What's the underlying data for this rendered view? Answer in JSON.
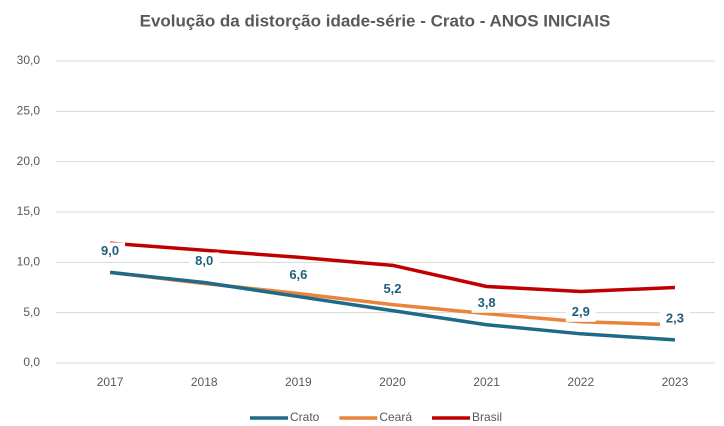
{
  "chart_data": {
    "type": "line",
    "title": "Evolução da distorção idade-série - Crato - ANOS INICIAIS",
    "categories": [
      "2017",
      "2018",
      "2019",
      "2020",
      "2021",
      "2022",
      "2023"
    ],
    "series": [
      {
        "name": "Crato",
        "color": "#1f6a88",
        "values": [
          9.0,
          8.0,
          6.6,
          5.2,
          3.8,
          2.9,
          2.3
        ],
        "value_labels": [
          "9,0",
          "8,0",
          "6,6",
          "5,2",
          "3,8",
          "2,9",
          "2,3"
        ]
      },
      {
        "name": "Ceará",
        "color": "#e8843c",
        "values": [
          9.0,
          7.9,
          6.9,
          5.8,
          4.9,
          4.1,
          3.8
        ]
      },
      {
        "name": "Brasil",
        "color": "#c00000",
        "values": [
          11.9,
          11.2,
          10.5,
          9.7,
          7.6,
          7.1,
          7.5
        ]
      }
    ],
    "ylim": [
      0,
      30
    ],
    "yticks": [
      {
        "value": 0,
        "label": "0,0"
      },
      {
        "value": 5,
        "label": "5,0"
      },
      {
        "value": 10,
        "label": "10,0"
      },
      {
        "value": 15,
        "label": "15,0"
      },
      {
        "value": 20,
        "label": "20,0"
      },
      {
        "value": 25,
        "label": "25,0"
      },
      {
        "value": 30,
        "label": "30,0"
      }
    ],
    "grid": true,
    "legend": "bottom"
  }
}
